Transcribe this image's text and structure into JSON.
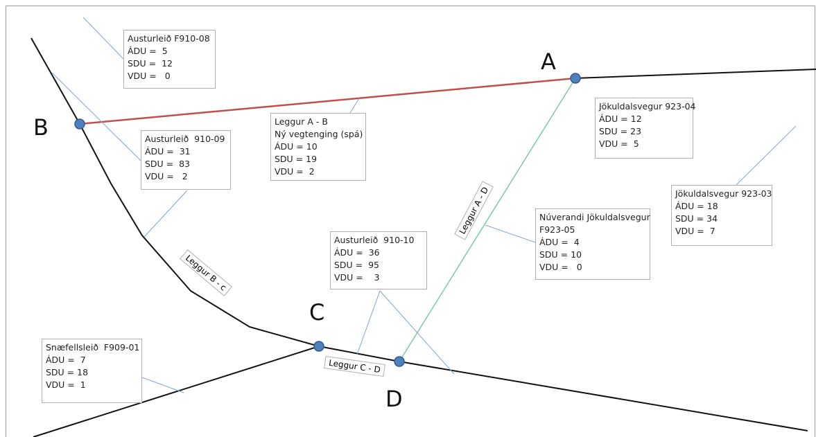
{
  "nodes": [
    {
      "label": "A"
    },
    {
      "label": "B"
    },
    {
      "label": "C"
    },
    {
      "label": "D"
    }
  ],
  "boxes": [
    {
      "lines": [
        "Austurleið F910-08",
        "ÁDU =  5",
        "SDU =  12",
        "VDU =   0"
      ]
    },
    {
      "lines": [
        "Austurleið  910-09",
        "ÁDU =  31",
        "SDU =  83",
        "VDU =   2"
      ]
    },
    {
      "lines": [
        "Leggur A - B",
        "Ný vegtenging (spá)",
        "ÁDU = 10",
        "SDU = 19",
        "VDU =  2"
      ]
    },
    {
      "lines": [
        "Jökuldalsvegur 923-04",
        "ÁDU = 12",
        "SDU = 23",
        "VDU =  5"
      ]
    },
    {
      "lines": [
        "Jökuldalsvegur 923-03",
        "ÁDU = 18",
        "SDU = 34",
        "VDU =  7"
      ]
    },
    {
      "lines": [
        "Núverandi Jökuldalsvegur",
        "F923-05",
        "ÁDU =  4",
        "SDU = 10",
        "VDU =   0"
      ]
    },
    {
      "lines": [
        "Austurleið  910-10",
        "ÁDU =  36",
        "SDU =  95",
        "VDU =    3"
      ]
    },
    {
      "lines": [
        "Snæfellsleið  F909-01",
        "ÁDU =  7",
        "SDU = 18",
        "VDU =  1"
      ]
    }
  ],
  "road_labels": [
    "Leggur A - D",
    "Leggur B - c",
    "Leggur C - D"
  ]
}
